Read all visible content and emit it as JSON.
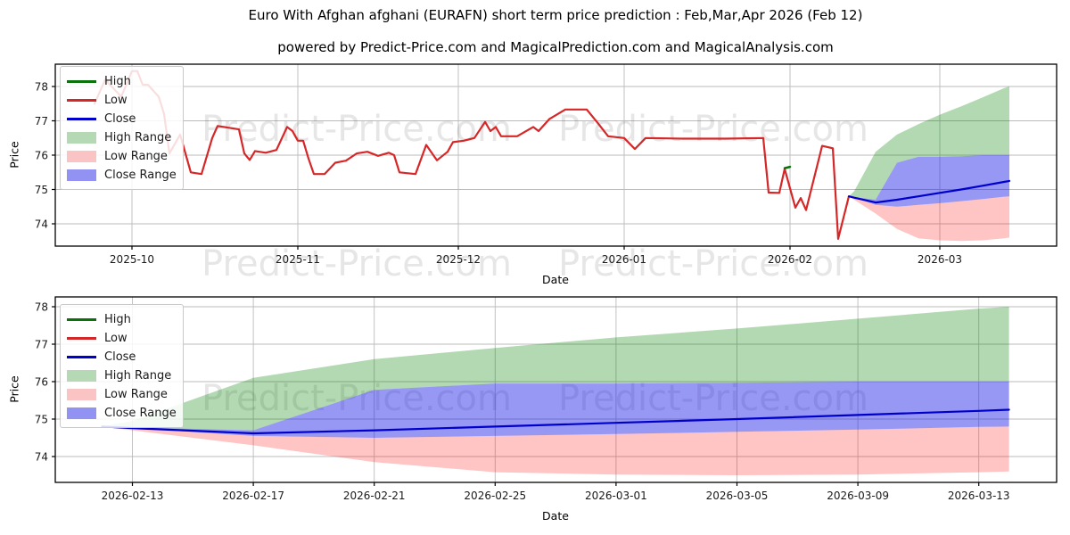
{
  "figure": {
    "title": "Euro With Afghan afghani (EURAFN) short term price prediction : Feb,Mar,Apr 2026 (Feb 12)",
    "subtitle": "powered by Predict-Price.com and MagicalPrediction.com and MagicalAnalysis.com",
    "watermark_text": "Predict-Price.com"
  },
  "colors": {
    "high_line": "#0a720a",
    "low_line": "#d62728",
    "close_line": "#0000cd",
    "high_range_fill": "rgba(0,128,0,0.30)",
    "low_range_fill": "rgba(255,20,20,0.25)",
    "close_range_fill": "rgba(25,25,230,0.45)",
    "high_range_legend": "#b5d8b5",
    "low_range_legend": "#fbc4c4",
    "close_range_legend": "#9292f2",
    "grid": "#bbbbbb",
    "axis": "#000000",
    "tick_text": "#1a1a1a",
    "watermark": "rgba(60,60,60,0.13)"
  },
  "legend": [
    {
      "label": "High",
      "swatch": "line",
      "color": "#0a720a"
    },
    {
      "label": "Low",
      "swatch": "line",
      "color": "#d62728"
    },
    {
      "label": "Close",
      "swatch": "line",
      "color": "#0000cd"
    },
    {
      "label": "High Range",
      "swatch": "patch",
      "color": "#b5d8b5"
    },
    {
      "label": "Low Range",
      "swatch": "patch",
      "color": "#fbc4c4"
    },
    {
      "label": "Close Range",
      "swatch": "patch",
      "color": "#9292f2"
    }
  ],
  "chart_data": {
    "type": "line",
    "title": "Euro With Afghan afghani (EURAFN) short term price prediction : Feb,Mar,Apr 2026 (Feb 12)",
    "charts": [
      {
        "name": "history-with-prediction",
        "xlabel": "Date",
        "ylabel": "Price",
        "x_ticks": [
          "2025-10",
          "2025-11",
          "2025-12",
          "2026-01",
          "2026-02",
          "2026-03"
        ],
        "y_ticks": [
          74,
          75,
          76,
          77,
          78
        ],
        "ylim": [
          73.35,
          78.65
        ],
        "grid": true,
        "legend_position": "upper left"
      },
      {
        "name": "prediction-zoom",
        "xlabel": "Date",
        "ylabel": "Price",
        "x_ticks": [
          "2026-02-13",
          "2026-02-17",
          "2026-02-21",
          "2026-02-25",
          "2026-03-01",
          "2026-03-05",
          "2026-03-09",
          "2026-03-13"
        ],
        "y_ticks": [
          74,
          75,
          76,
          77,
          78
        ],
        "ylim": [
          73.31,
          78.26
        ],
        "grid": true,
        "legend_position": "upper left"
      }
    ],
    "historical_low": {
      "name": "Low",
      "dates": [
        "2025-09-24",
        "2025-09-26",
        "2025-09-29",
        "2025-10-01",
        "2025-10-02",
        "2025-10-03",
        "2025-10-04",
        "2025-10-06",
        "2025-10-07",
        "2025-10-08",
        "2025-10-10",
        "2025-10-12",
        "2025-10-14",
        "2025-10-16",
        "2025-10-17",
        "2025-10-19",
        "2025-10-21",
        "2025-10-22",
        "2025-10-23",
        "2025-10-24",
        "2025-10-26",
        "2025-10-28",
        "2025-10-30",
        "2025-10-31",
        "2025-11-01",
        "2025-11-02",
        "2025-11-03",
        "2025-11-04",
        "2025-11-06",
        "2025-11-08",
        "2025-11-10",
        "2025-11-12",
        "2025-11-14",
        "2025-11-16",
        "2025-11-18",
        "2025-11-19",
        "2025-11-20",
        "2025-11-23",
        "2025-11-25",
        "2025-11-27",
        "2025-11-29",
        "2025-11-30",
        "2025-12-02",
        "2025-12-04",
        "2025-12-06",
        "2025-12-07",
        "2025-12-08",
        "2025-12-09",
        "2025-12-12",
        "2025-12-15",
        "2025-12-16",
        "2025-12-18",
        "2025-12-21",
        "2025-12-25",
        "2025-12-27",
        "2025-12-29",
        "2026-01-01",
        "2026-01-03",
        "2026-01-05",
        "2026-01-12",
        "2026-01-20",
        "2026-01-27",
        "2026-01-28",
        "2026-01-30",
        "2026-01-31",
        "2026-02-02",
        "2026-02-03",
        "2026-02-04",
        "2026-02-07",
        "2026-02-09",
        "2026-02-10",
        "2026-02-12"
      ],
      "values": [
        77.5,
        78.2,
        77.7,
        78.45,
        78.45,
        78.05,
        78.05,
        77.7,
        77.2,
        76.05,
        76.6,
        75.5,
        75.45,
        76.5,
        76.85,
        76.8,
        76.75,
        76.05,
        75.86,
        76.12,
        76.07,
        76.15,
        76.82,
        76.7,
        76.42,
        76.42,
        75.9,
        75.45,
        75.45,
        75.78,
        75.84,
        76.05,
        76.1,
        75.98,
        76.07,
        76.0,
        75.5,
        75.45,
        76.3,
        75.85,
        76.1,
        76.38,
        76.42,
        76.5,
        76.97,
        76.7,
        76.82,
        76.55,
        76.55,
        76.82,
        76.7,
        77.05,
        77.33,
        77.33,
        76.95,
        76.55,
        76.5,
        76.18,
        76.5,
        76.48,
        76.48,
        76.5,
        74.91,
        74.9,
        75.6,
        74.47,
        74.75,
        74.4,
        76.27,
        76.2,
        73.56,
        74.8
      ]
    },
    "historical_high_visible": {
      "name": "High",
      "dates": [
        "2026-01-31",
        "2026-02-01"
      ],
      "values": [
        75.62,
        75.66
      ]
    },
    "prediction": {
      "dates": [
        "2026-02-12",
        "2026-02-13",
        "2026-02-17",
        "2026-02-21",
        "2026-02-25",
        "2026-03-01",
        "2026-03-05",
        "2026-03-09",
        "2026-03-13",
        "2026-03-14"
      ],
      "close": [
        74.8,
        74.76,
        74.62,
        74.7,
        74.8,
        74.9,
        75.0,
        75.11,
        75.22,
        75.25
      ],
      "high_range_top": [
        74.8,
        74.95,
        76.1,
        76.6,
        76.9,
        77.18,
        77.42,
        77.68,
        77.95,
        78.0
      ],
      "close_range_top": [
        74.8,
        74.78,
        74.7,
        75.78,
        75.95,
        75.95,
        75.97,
        76.0,
        76.0,
        76.0
      ],
      "close_range_bottom": [
        74.8,
        74.76,
        74.55,
        74.5,
        74.55,
        74.6,
        74.66,
        74.72,
        74.79,
        74.8
      ],
      "low_range_bottom": [
        74.8,
        74.7,
        74.3,
        73.85,
        73.58,
        73.52,
        73.5,
        73.52,
        73.58,
        73.6
      ]
    }
  }
}
